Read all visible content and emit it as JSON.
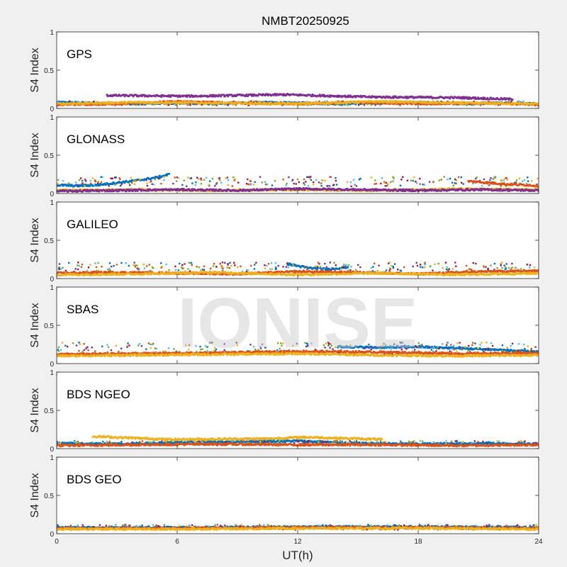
{
  "figure": {
    "title": "NMBT20250925",
    "xlabel": "UT(h)",
    "watermark": "IONISE"
  },
  "colors": {
    "background": "#f0f0f0",
    "axes_bg": "#ffffff",
    "axes_line": "#262626",
    "palette": [
      "#0072BD",
      "#D95319",
      "#EDB120",
      "#7E2F8E",
      "#77AC30",
      "#4DBEEE",
      "#A2142F"
    ]
  },
  "chart_data": [
    {
      "type": "scatter",
      "panel": "GPS",
      "ylabel": "S4 Index",
      "xlim": [
        0,
        24
      ],
      "ylim": [
        0,
        1
      ],
      "xticks": [
        0,
        6,
        12,
        18,
        24
      ],
      "yticks": [
        0,
        0.5,
        1
      ],
      "series": [
        {
          "x": [
            0,
            2,
            4,
            6,
            8,
            10,
            12,
            14,
            16,
            18,
            20,
            22,
            24
          ],
          "y": [
            0.08,
            0.07,
            0.06,
            0.07,
            0.06,
            0.08,
            0.07,
            0.06,
            0.07,
            0.08,
            0.06,
            0.07,
            0.06
          ]
        },
        {
          "x": [
            0,
            3,
            6,
            9,
            12,
            15,
            18,
            21,
            24
          ],
          "y": [
            0.05,
            0.06,
            0.09,
            0.07,
            0.06,
            0.08,
            0.06,
            0.07,
            0.05
          ]
        },
        {
          "x": [
            0,
            4,
            8,
            12,
            16,
            20,
            24
          ],
          "y": [
            0.06,
            0.08,
            0.07,
            0.06,
            0.09,
            0.07,
            0.06
          ]
        },
        {
          "x": [
            2.5,
            6.6,
            11.4,
            15.6,
            20.2,
            22.7
          ],
          "y": [
            0.17,
            0.16,
            0.18,
            0.15,
            0.14,
            0.12
          ]
        }
      ]
    },
    {
      "type": "scatter",
      "panel": "GLONASS",
      "ylabel": "S4 Index",
      "xlim": [
        0,
        24
      ],
      "ylim": [
        0,
        1
      ],
      "xticks": [
        0,
        6,
        12,
        18,
        24
      ],
      "yticks": [
        0,
        0.5,
        1
      ],
      "series": [
        {
          "x": [
            0,
            1,
            2,
            3,
            4,
            5,
            5.6
          ],
          "y": [
            0.11,
            0.1,
            0.11,
            0.14,
            0.17,
            0.21,
            0.25
          ]
        },
        {
          "x": [
            20.5,
            21.5,
            22.5,
            23.5,
            24
          ],
          "y": [
            0.16,
            0.14,
            0.12,
            0.11,
            0.1
          ]
        },
        {
          "x": [
            0,
            4,
            8,
            12,
            16,
            20,
            24
          ],
          "y": [
            0.04,
            0.05,
            0.04,
            0.05,
            0.04,
            0.06,
            0.05
          ]
        },
        {
          "x": [
            0,
            3,
            6,
            9,
            12,
            15,
            18,
            21,
            24
          ],
          "y": [
            0.03,
            0.04,
            0.05,
            0.04,
            0.06,
            0.05,
            0.04,
            0.05,
            0.04
          ]
        }
      ]
    },
    {
      "type": "scatter",
      "panel": "GALILEO",
      "ylabel": "S4 Index",
      "xlim": [
        0,
        24
      ],
      "ylim": [
        0,
        1
      ],
      "xticks": [
        0,
        6,
        12,
        18,
        24
      ],
      "yticks": [
        0,
        0.5,
        1
      ],
      "series": [
        {
          "x": [
            11.5,
            12.5,
            13.5,
            14.5
          ],
          "y": [
            0.19,
            0.14,
            0.12,
            0.15
          ]
        },
        {
          "x": [
            0,
            3,
            6,
            9,
            12,
            15,
            18,
            21,
            24
          ],
          "y": [
            0.07,
            0.08,
            0.07,
            0.06,
            0.09,
            0.08,
            0.06,
            0.09,
            0.1
          ]
        },
        {
          "x": [
            0,
            4,
            8,
            12,
            16,
            20,
            24
          ],
          "y": [
            0.05,
            0.06,
            0.08,
            0.05,
            0.07,
            0.05,
            0.07
          ]
        }
      ]
    },
    {
      "type": "scatter",
      "panel": "SBAS",
      "ylabel": "S4 Index",
      "xlim": [
        0,
        24
      ],
      "ylim": [
        0,
        1
      ],
      "xticks": [
        0,
        6,
        12,
        18,
        24
      ],
      "yticks": [
        0,
        0.5,
        1
      ],
      "series": [
        {
          "x": [
            14,
            16,
            18,
            20,
            22,
            24
          ],
          "y": [
            0.22,
            0.21,
            0.22,
            0.2,
            0.18,
            0.15
          ]
        },
        {
          "x": [
            0,
            4,
            8,
            12,
            16,
            20,
            24
          ],
          "y": [
            0.12,
            0.13,
            0.14,
            0.16,
            0.15,
            0.13,
            0.14
          ]
        },
        {
          "x": [
            0,
            4,
            8,
            12,
            16,
            20,
            24
          ],
          "y": [
            0.1,
            0.11,
            0.12,
            0.13,
            0.11,
            0.1,
            0.11
          ]
        }
      ]
    },
    {
      "type": "scatter",
      "panel": "BDS NGEO",
      "ylabel": "S4 Index",
      "xlim": [
        0,
        24
      ],
      "ylim": [
        0,
        1
      ],
      "xticks": [
        0,
        6,
        12,
        18,
        24
      ],
      "yticks": [
        0,
        0.5,
        1
      ],
      "series": [
        {
          "x": [
            0,
            3,
            6,
            9,
            12,
            15,
            18,
            21,
            24
          ],
          "y": [
            0.07,
            0.06,
            0.08,
            0.09,
            0.1,
            0.07,
            0.06,
            0.07,
            0.06
          ]
        },
        {
          "x": [
            0,
            4,
            8,
            12,
            16,
            20,
            24
          ],
          "y": [
            0.04,
            0.05,
            0.06,
            0.05,
            0.05,
            0.04,
            0.05
          ]
        },
        {
          "x": [
            1.8,
            5.6,
            10.6,
            12.4,
            16.2
          ],
          "y": [
            0.16,
            0.12,
            0.13,
            0.15,
            0.12
          ]
        }
      ]
    },
    {
      "type": "scatter",
      "panel": "BDS GEO",
      "ylabel": "S4 Index",
      "xlim": [
        0,
        24
      ],
      "ylim": [
        0,
        1
      ],
      "xticks": [
        0,
        6,
        12,
        18,
        24
      ],
      "yticks": [
        0,
        0.5,
        1
      ],
      "series": [
        {
          "x": [
            0,
            6,
            12,
            18,
            24
          ],
          "y": [
            0.08,
            0.08,
            0.09,
            0.09,
            0.08
          ]
        },
        {
          "x": [
            0,
            6,
            12,
            18,
            24
          ],
          "y": [
            0.07,
            0.07,
            0.08,
            0.08,
            0.07
          ]
        },
        {
          "x": [
            0,
            6,
            12,
            18,
            24
          ],
          "y": [
            0.06,
            0.06,
            0.07,
            0.07,
            0.06
          ]
        }
      ]
    }
  ]
}
